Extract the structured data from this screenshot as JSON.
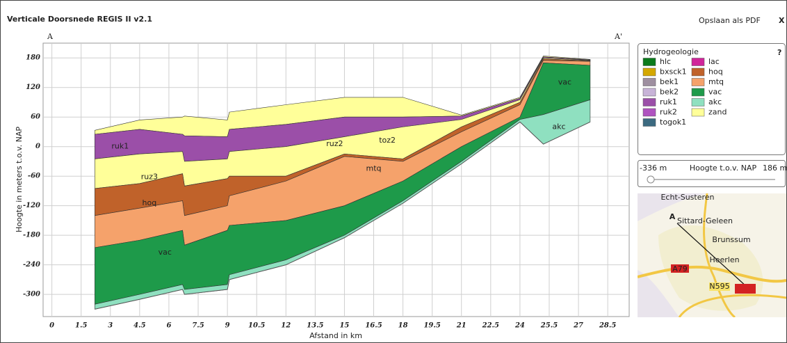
{
  "header": {
    "title": "Verticale Doorsnede REGIS II v2.1",
    "action": "Opslaan als PDF",
    "close": "X"
  },
  "chart_data": {
    "type": "area",
    "markers": {
      "left": "A",
      "right": "A'"
    },
    "xlabel": "Afstand in km",
    "ylabel": "Hoogte in meters t.o.v. NAP",
    "x": [
      2.2,
      4.5,
      6.7,
      6.8,
      9,
      9.1,
      12,
      15,
      18,
      21,
      24,
      25.2,
      27.6
    ],
    "xlim": [
      -0.45,
      29.6
    ],
    "xticks": [
      0,
      1.5,
      3,
      4.5,
      6,
      7.5,
      9,
      10.5,
      12,
      13.5,
      15,
      16.5,
      18,
      19.5,
      21,
      22.5,
      24,
      25.5,
      27,
      28.5
    ],
    "ylim": [
      -345,
      210
    ],
    "yticks": [
      180,
      120,
      60,
      0,
      -60,
      -120,
      -180,
      -240,
      -300
    ],
    "grid": true,
    "series": [
      {
        "name": "zand",
        "color": "#ffff99",
        "values": [
          33,
          54,
          60,
          62,
          54,
          70,
          85,
          100,
          100,
          64,
          100,
          184,
          177
        ]
      },
      {
        "name": "ruk1",
        "color": "#9b4fa8",
        "values": [
          25,
          35,
          25,
          22,
          20,
          35,
          45,
          60,
          60,
          62,
          98,
          182,
          176
        ]
      },
      {
        "name": "zand",
        "color": "#ffff99",
        "values": [
          -25,
          -15,
          -10,
          -30,
          -25,
          -10,
          0,
          20,
          40,
          55,
          95,
          180,
          175
        ]
      },
      {
        "name": "hoq",
        "color": "#c0622a",
        "values": [
          -85,
          -75,
          -55,
          -80,
          -65,
          -60,
          -60,
          -15,
          -25,
          40,
          90,
          178,
          174
        ]
      },
      {
        "name": "mtq",
        "color": "#f5a26b",
        "values": [
          -140,
          -125,
          -110,
          -140,
          -120,
          -100,
          -70,
          -20,
          -30,
          30,
          85,
          175,
          173
        ]
      },
      {
        "name": "vac",
        "color": "#1e9a4a",
        "values": [
          -205,
          -190,
          -170,
          -200,
          -170,
          -160,
          -150,
          -120,
          -70,
          0,
          60,
          170,
          165
        ]
      },
      {
        "name": "akc",
        "color": "#8fe0c0",
        "values": [
          -320,
          -300,
          -280,
          -290,
          -280,
          -260,
          -230,
          -180,
          -110,
          -30,
          55,
          65,
          95
        ]
      }
    ],
    "base": [
      -330,
      -310,
      -290,
      -300,
      -290,
      -270,
      -240,
      -185,
      -115,
      -35,
      50,
      5,
      50
    ],
    "annotations": [
      {
        "text": "ruk1",
        "x": 3.5,
        "y": 0
      },
      {
        "text": "ruz3",
        "x": 5,
        "y": -62
      },
      {
        "text": "hoq",
        "x": 5,
        "y": -115
      },
      {
        "text": "vac",
        "x": 5.8,
        "y": -215
      },
      {
        "text": "ruz2",
        "x": 14.5,
        "y": 5
      },
      {
        "text": "toz2",
        "x": 17.2,
        "y": 12
      },
      {
        "text": "mtq",
        "x": 16.5,
        "y": -45
      },
      {
        "text": "vac",
        "x": 26.3,
        "y": 130
      },
      {
        "text": "akc",
        "x": 26,
        "y": 40
      }
    ],
    "legend": {
      "title": "Hydrogeologie",
      "help": "?",
      "items": [
        {
          "name": "hlc",
          "color": "#0b7a1c"
        },
        {
          "name": "bxsck1",
          "color": "#d4a800"
        },
        {
          "name": "bek1",
          "color": "#9e8fa0"
        },
        {
          "name": "bek2",
          "color": "#c8b4d8"
        },
        {
          "name": "ruk1",
          "color": "#9b4fa8"
        },
        {
          "name": "ruk2",
          "color": "#b053c0"
        },
        {
          "name": "togok1",
          "color": "#3c6a80"
        },
        {
          "name": "lac",
          "color": "#d0259a"
        },
        {
          "name": "hoq",
          "color": "#c0622a"
        },
        {
          "name": "mtq",
          "color": "#f5a26b"
        },
        {
          "name": "vac",
          "color": "#1e9a4a"
        },
        {
          "name": "akc",
          "color": "#8fe0c0"
        },
        {
          "name": "zand",
          "color": "#ffff99"
        }
      ]
    }
  },
  "slider": {
    "min_label": "-336 m",
    "label": "Hoogte t.o.v. NAP",
    "max_label": "186 m"
  },
  "map": {
    "labels": [
      "Echt-Susteren",
      "Sittard-Geleen",
      "Brunssum",
      "Heerlen",
      "A79",
      "N595",
      "A"
    ]
  }
}
